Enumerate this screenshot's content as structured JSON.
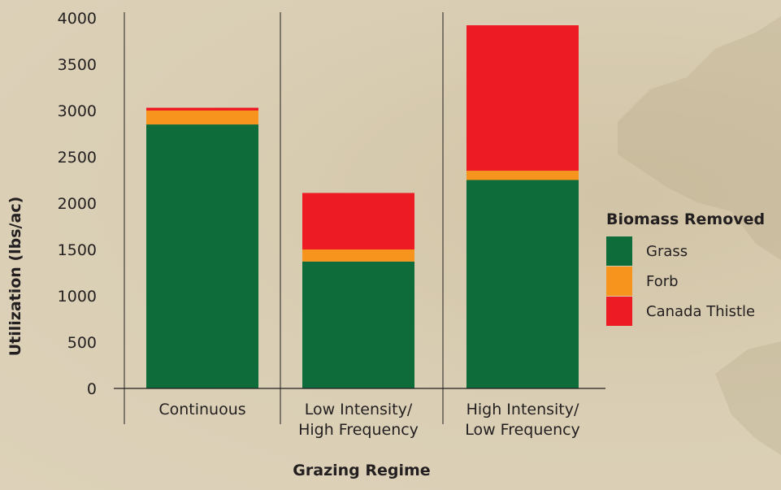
{
  "chart_data": {
    "type": "bar",
    "stacked": true,
    "xlabel": "Grazing Regime",
    "ylabel": "Utilization (lbs/ac)",
    "ylim": [
      0,
      4000
    ],
    "yticks": [
      0,
      500,
      1000,
      1500,
      2000,
      2500,
      3000,
      3500,
      4000
    ],
    "categories": [
      [
        "Continuous"
      ],
      [
        "Low Intensity/",
        "High Frequency"
      ],
      [
        "High Intensity/",
        "Low Frequency"
      ]
    ],
    "series": [
      {
        "name": "Grass",
        "color": "#0e6b3a",
        "values": [
          2850,
          1370,
          2250
        ]
      },
      {
        "name": "Forb",
        "color": "#f7941d",
        "values": [
          150,
          130,
          100
        ]
      },
      {
        "name": "Canada Thistle",
        "color": "#ed1c24",
        "values": [
          30,
          610,
          1570
        ]
      }
    ],
    "legend": {
      "title": "Biomass Removed",
      "placement": "right"
    },
    "grid": false
  }
}
